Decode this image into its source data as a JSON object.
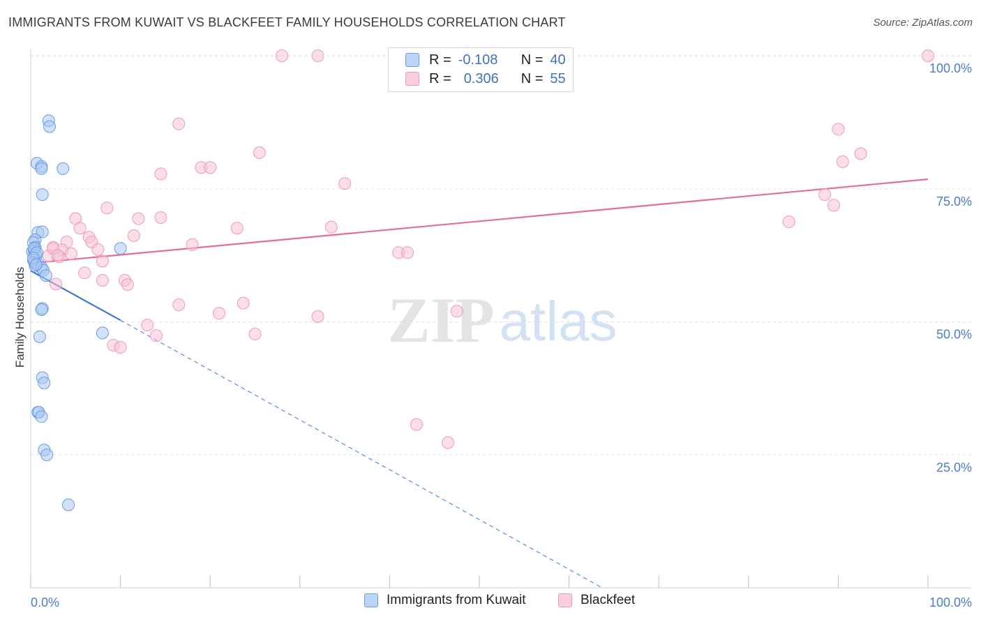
{
  "title": "IMMIGRANTS FROM KUWAIT VS BLACKFEET FAMILY HOUSEHOLDS CORRELATION CHART",
  "source": "Source: ZipAtlas.com",
  "watermark": {
    "zip": "ZIP",
    "atlas": "atlas"
  },
  "legend": {
    "r_label": "R =",
    "n_label": "N =",
    "kuwait": {
      "r": "-0.108",
      "n": "40"
    },
    "blackfeet": {
      "r": "0.306",
      "n": "55"
    }
  },
  "bottom_legend": {
    "kuwait": "Immigrants from Kuwait",
    "blackfeet": "Blackfeet"
  },
  "colors": {
    "kuwait_fill": "#a9c8f2",
    "kuwait_stroke": "#6a9be0",
    "kuwait_line": "#3a78d6",
    "blackfeet_fill": "#f7c3d4",
    "blackfeet_stroke": "#ee9ab6",
    "blackfeet_line": "#e46d97",
    "tick_label": "#4a7cc9",
    "grid": "#e0e0e0"
  },
  "chart_data": {
    "type": "scatter",
    "title": "IMMIGRANTS FROM KUWAIT VS BLACKFEET FAMILY HOUSEHOLDS CORRELATION CHART",
    "xlabel": "",
    "ylabel": "Family Households",
    "xlim": [
      0,
      100
    ],
    "ylim": [
      0,
      102
    ],
    "x_tick_labels": [
      "0.0%",
      "100.0%"
    ],
    "y_ticks": [
      {
        "value": 25,
        "label": "25.0%"
      },
      {
        "value": 50,
        "label": "50.0%"
      },
      {
        "value": 75,
        "label": "75.0%"
      },
      {
        "value": 100,
        "label": "100.0%"
      }
    ],
    "series": [
      {
        "name": "Immigrants from Kuwait",
        "points": [
          [
            2.0,
            87.8
          ],
          [
            2.1,
            86.7
          ],
          [
            0.7,
            79.8
          ],
          [
            1.2,
            79.2
          ],
          [
            1.2,
            78.8
          ],
          [
            3.6,
            78.8
          ],
          [
            1.3,
            73.9
          ],
          [
            0.8,
            66.8
          ],
          [
            1.3,
            66.9
          ],
          [
            0.5,
            65.4
          ],
          [
            0.3,
            64.9
          ],
          [
            0.5,
            64.0
          ],
          [
            0.2,
            63.2
          ],
          [
            0.4,
            63.4
          ],
          [
            0.5,
            62.8
          ],
          [
            0.6,
            62.4
          ],
          [
            0.3,
            61.6
          ],
          [
            0.4,
            61.2
          ],
          [
            0.8,
            61.0
          ],
          [
            0.5,
            60.5
          ],
          [
            1.2,
            60.2
          ],
          [
            1.4,
            59.7
          ],
          [
            1.7,
            58.7
          ],
          [
            10.0,
            63.8
          ],
          [
            1.3,
            52.5
          ],
          [
            1.2,
            52.3
          ],
          [
            1.0,
            47.2
          ],
          [
            8.0,
            47.9
          ],
          [
            1.3,
            39.5
          ],
          [
            1.5,
            38.5
          ],
          [
            0.8,
            33.0
          ],
          [
            0.9,
            33.0
          ],
          [
            1.2,
            32.2
          ],
          [
            1.5,
            25.9
          ],
          [
            1.8,
            25.0
          ],
          [
            4.2,
            15.6
          ],
          [
            0.4,
            63.8
          ],
          [
            0.7,
            63.0
          ],
          [
            0.3,
            62.0
          ],
          [
            0.6,
            60.8
          ]
        ],
        "trend_solid": {
          "x": [
            0,
            10
          ],
          "y": [
            59.6,
            50.3
          ]
        },
        "trend_dashed": {
          "x": [
            10,
            63.7
          ],
          "y": [
            50.3,
            0
          ]
        }
      },
      {
        "name": "Blackfeet",
        "points": [
          [
            28.0,
            100.0
          ],
          [
            32.0,
            100.0
          ],
          [
            100.0,
            100.0
          ],
          [
            16.5,
            87.2
          ],
          [
            90.0,
            86.2
          ],
          [
            25.5,
            81.8
          ],
          [
            92.5,
            81.6
          ],
          [
            90.5,
            80.1
          ],
          [
            19.0,
            79.0
          ],
          [
            20.0,
            79.0
          ],
          [
            14.5,
            77.8
          ],
          [
            35.0,
            76.0
          ],
          [
            88.5,
            73.9
          ],
          [
            8.5,
            71.4
          ],
          [
            5.0,
            69.4
          ],
          [
            12.0,
            69.4
          ],
          [
            14.5,
            69.6
          ],
          [
            89.5,
            71.9
          ],
          [
            84.5,
            68.8
          ],
          [
            5.5,
            67.6
          ],
          [
            23.0,
            67.6
          ],
          [
            33.5,
            67.8
          ],
          [
            6.5,
            65.9
          ],
          [
            11.5,
            66.2
          ],
          [
            4.0,
            65.0
          ],
          [
            18.0,
            64.5
          ],
          [
            6.8,
            65.0
          ],
          [
            2.5,
            64.0
          ],
          [
            3.5,
            63.5
          ],
          [
            7.5,
            63.6
          ],
          [
            2.0,
            62.4
          ],
          [
            3.2,
            62.2
          ],
          [
            41.0,
            63.0
          ],
          [
            42.0,
            63.0
          ],
          [
            8.0,
            61.4
          ],
          [
            6.0,
            59.2
          ],
          [
            8.0,
            57.8
          ],
          [
            10.5,
            57.8
          ],
          [
            2.8,
            57.1
          ],
          [
            10.8,
            57.0
          ],
          [
            16.5,
            53.2
          ],
          [
            23.7,
            53.5
          ],
          [
            21.0,
            51.6
          ],
          [
            32.0,
            51.0
          ],
          [
            47.5,
            52.0
          ],
          [
            13.0,
            49.4
          ],
          [
            25.0,
            47.7
          ],
          [
            14.0,
            47.4
          ],
          [
            9.2,
            45.6
          ],
          [
            10.0,
            45.2
          ],
          [
            43.0,
            30.7
          ],
          [
            46.5,
            27.3
          ],
          [
            2.5,
            63.8
          ],
          [
            4.5,
            62.8
          ],
          [
            3.0,
            62.5
          ]
        ],
        "trend": {
          "x": [
            0,
            100
          ],
          "y": [
            61.0,
            76.8
          ]
        }
      }
    ]
  }
}
